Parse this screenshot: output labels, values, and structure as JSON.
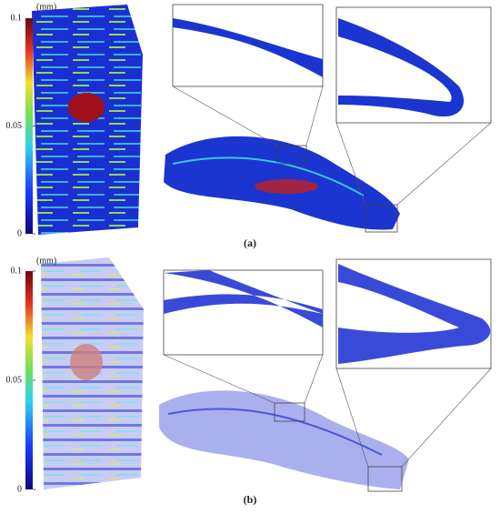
{
  "panels": [
    {
      "label": "(a)",
      "colorbar": {
        "unit": "(mm)",
        "lim": [
          0,
          0.1
        ],
        "ticks": [
          0,
          0.05,
          0.1
        ]
      }
    },
    {
      "label": "(b)",
      "colorbar": {
        "unit": "(mm)",
        "lim": [
          0,
          0.1
        ],
        "ticks": [
          0,
          0.05,
          0.1
        ]
      }
    }
  ]
}
